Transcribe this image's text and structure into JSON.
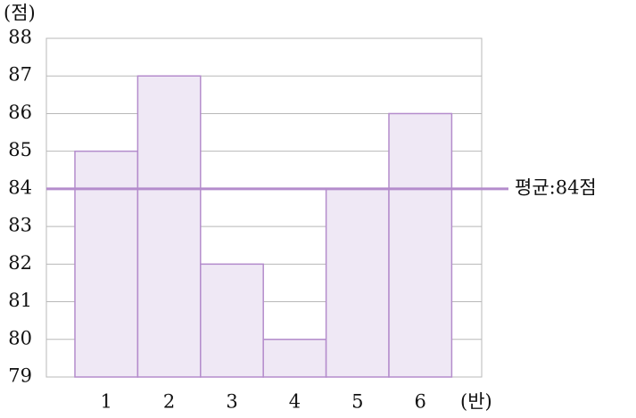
{
  "chart_data": {
    "type": "bar",
    "y_label": "(점)",
    "x_label": "(반)",
    "categories": [
      "1",
      "2",
      "3",
      "4",
      "5",
      "6"
    ],
    "values": [
      85,
      87,
      82,
      80,
      84,
      86
    ],
    "color": "#efe8f5",
    "edge_color": "#b48ccc",
    "ylim": [
      79,
      88
    ],
    "yticks": [
      79,
      80,
      81,
      82,
      83,
      84,
      85,
      86,
      87,
      88
    ],
    "grid": true,
    "reference_line": {
      "value": 84,
      "label": "평균:84점",
      "color": "#b48ccc"
    }
  }
}
